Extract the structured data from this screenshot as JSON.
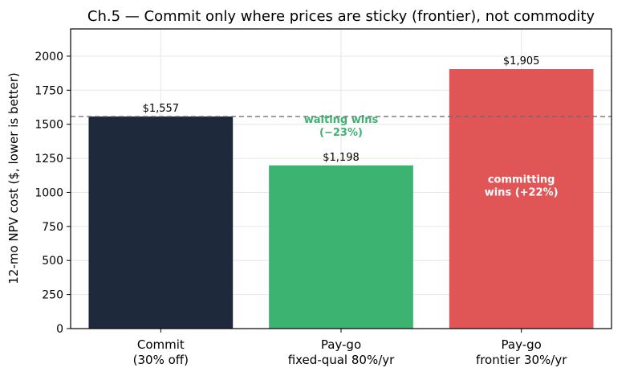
{
  "chart_data": {
    "type": "bar",
    "title": "Ch.5 — Commit only where prices are sticky (frontier), not commodity",
    "ylabel": "12-mo NPV cost  ($, lower is better)",
    "xlabel": "",
    "ylim": [
      0,
      2200
    ],
    "yticks": [
      0,
      250,
      500,
      750,
      1000,
      1250,
      1500,
      1750,
      2000
    ],
    "grid": true,
    "categories": [
      [
        "Commit",
        "(30% off)"
      ],
      [
        "Pay-go",
        "fixed-qual 80%/yr"
      ],
      [
        "Pay-go",
        "frontier 30%/yr"
      ]
    ],
    "values": [
      1557,
      1198,
      1905
    ],
    "value_labels": [
      "$1,557",
      "$1,198",
      "$1,905"
    ],
    "colors": [
      "#1e293b",
      "#3cb371",
      "#e05656"
    ],
    "reference_line": {
      "value": 1557,
      "style": "dashed",
      "color": "#666666"
    },
    "annotations": [
      {
        "bar": 1,
        "lines": [
          "waiting wins",
          "(−23%)"
        ],
        "value": 1510,
        "color": "#3cb371"
      },
      {
        "bar": 2,
        "lines": [
          "committing",
          "wins (+22%)"
        ],
        "value": 1070,
        "color": "#ffffff"
      }
    ]
  }
}
